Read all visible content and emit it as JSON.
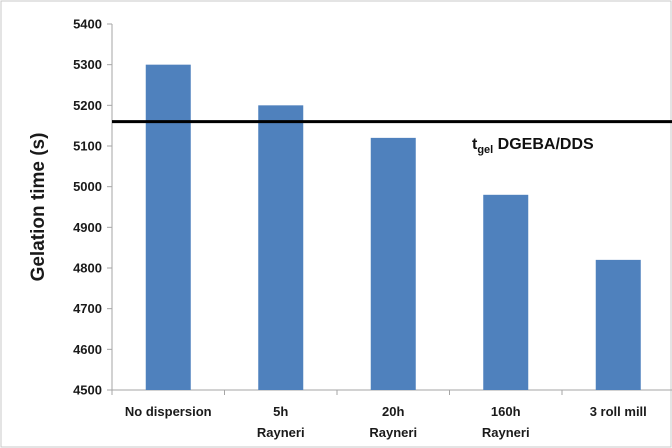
{
  "chart_data": {
    "type": "bar",
    "title": "",
    "xlabel": "",
    "ylabel": "Gelation time (s)",
    "ylim": [
      4500,
      5400
    ],
    "yticks": [
      4500,
      4600,
      4700,
      4800,
      4900,
      5000,
      5100,
      5200,
      5300,
      5400
    ],
    "grid": false,
    "categories": [
      [
        "No dispersion"
      ],
      [
        "5h",
        "Rayneri"
      ],
      [
        "20h",
        "Rayneri"
      ],
      [
        "160h",
        "Rayneri"
      ],
      [
        "3 roll mill"
      ]
    ],
    "values": [
      5300,
      5200,
      5120,
      4980,
      4820
    ],
    "reference_line": {
      "value": 5160,
      "label_main": "t",
      "label_sub": "gel",
      "label_rest": " DGEBA/DDS"
    },
    "colors": {
      "bar": "#4f81bd",
      "reference_line": "#000000",
      "axis": "#a6a6a6"
    }
  }
}
